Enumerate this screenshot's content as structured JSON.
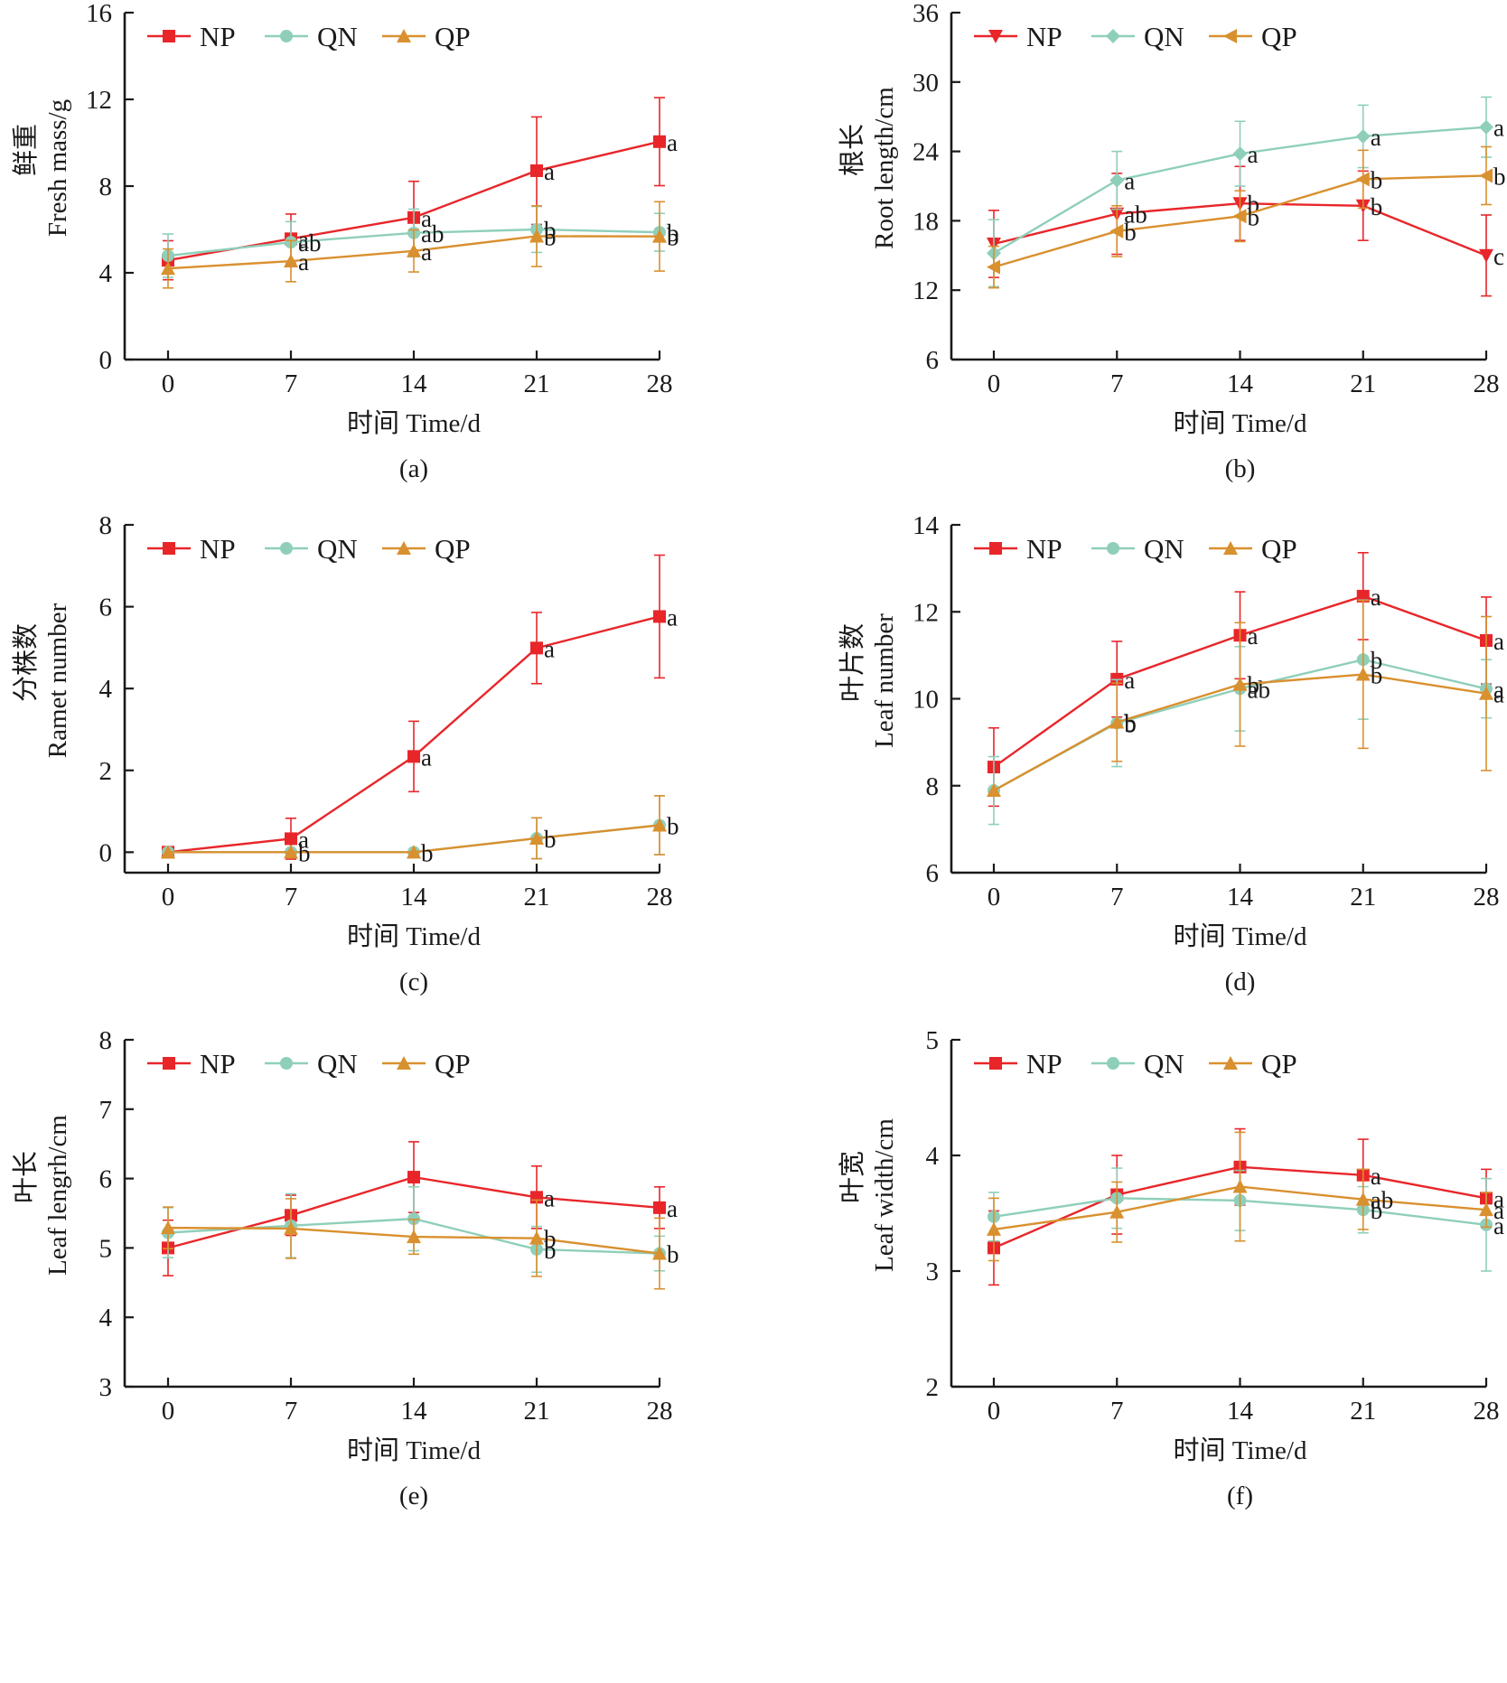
{
  "figure": {
    "xlabel_cn": "时间",
    "xlabel_en": "Time/d"
  },
  "colors": {
    "NP": "#E8262A",
    "QN": "#8FCFBA",
    "QP": "#D9902F"
  },
  "chart_data": [
    {
      "id": "a",
      "type": "line",
      "caption": "(a)",
      "ylabel_cn": "鲜重",
      "ylabel_en": "Fresh mass/g",
      "xlabel": "时间 Time/d",
      "x": [
        0,
        7,
        14,
        21,
        28
      ],
      "xticks": [
        "0",
        "7",
        "14",
        "21",
        "28"
      ],
      "ylim": [
        0,
        16
      ],
      "yticks": [
        0,
        4,
        8,
        12,
        16
      ],
      "legend": [
        "NP",
        "QN",
        "QP"
      ],
      "legend_position": "top-left",
      "markers": {
        "NP": "square",
        "QN": "circle",
        "QP": "triangle-up"
      },
      "series": [
        {
          "name": "NP",
          "values": [
            4.58,
            5.57,
            6.55,
            8.71,
            10.05
          ],
          "error": [
            0.9,
            1.14,
            1.67,
            2.48,
            2.03
          ],
          "sig": [
            "",
            "a",
            "a",
            "a",
            "a"
          ]
        },
        {
          "name": "QN",
          "values": [
            4.79,
            5.41,
            5.84,
            6.0,
            5.87
          ],
          "error": [
            1.0,
            0.95,
            1.1,
            1.06,
            0.87
          ],
          "sig": [
            "",
            "ab",
            "ab",
            "b",
            "b"
          ]
        },
        {
          "name": "QP",
          "values": [
            4.2,
            4.54,
            5.01,
            5.69,
            5.68
          ],
          "error": [
            0.9,
            0.95,
            0.97,
            1.4,
            1.6
          ],
          "sig": [
            "",
            "a",
            "a",
            "b",
            "b"
          ]
        }
      ]
    },
    {
      "id": "b",
      "type": "line",
      "caption": "(b)",
      "ylabel_cn": "根长",
      "ylabel_en": "Root length/cm",
      "xlabel": "时间 Time/d",
      "x": [
        0,
        7,
        14,
        21,
        28
      ],
      "xticks": [
        "0",
        "7",
        "14",
        "21",
        "28"
      ],
      "ylim": [
        6,
        36
      ],
      "yticks": [
        6,
        12,
        18,
        24,
        30,
        36
      ],
      "legend": [
        "NP",
        "QN",
        "QP"
      ],
      "legend_position": "top-left",
      "markers": {
        "NP": "triangle-down",
        "QN": "diamond",
        "QP": "triangle-left"
      },
      "series": [
        {
          "name": "NP",
          "values": [
            16.0,
            18.6,
            19.5,
            19.3,
            15.0
          ],
          "error": [
            2.9,
            3.5,
            3.2,
            3.0,
            3.5
          ],
          "sig": [
            "",
            "ab",
            "b",
            "b",
            "c"
          ]
        },
        {
          "name": "QN",
          "values": [
            15.2,
            21.5,
            23.8,
            25.3,
            26.1
          ],
          "error": [
            2.9,
            2.5,
            2.8,
            2.7,
            2.6
          ],
          "sig": [
            "",
            "a",
            "a",
            "a",
            "a"
          ]
        },
        {
          "name": "QP",
          "values": [
            14.0,
            17.1,
            18.4,
            21.6,
            21.9
          ],
          "error": [
            1.8,
            2.2,
            2.2,
            2.5,
            2.5
          ],
          "sig": [
            "",
            "b",
            "b",
            "b",
            "b"
          ]
        }
      ]
    },
    {
      "id": "c",
      "type": "line",
      "caption": "(c)",
      "ylabel_cn": "分株数",
      "ylabel_en": "Ramet number",
      "xlabel": "时间 Time/d",
      "x": [
        0,
        7,
        14,
        21,
        28
      ],
      "xticks": [
        "0",
        "7",
        "14",
        "21",
        "28"
      ],
      "ylim": [
        -0.5,
        8
      ],
      "yticks": [
        0,
        2,
        4,
        6,
        8
      ],
      "legend": [
        "NP",
        "QN",
        "QP"
      ],
      "legend_position": "top-left",
      "markers": {
        "NP": "square",
        "QN": "circle",
        "QP": "triangle-up"
      },
      "series": [
        {
          "name": "NP",
          "values": [
            0,
            0.33,
            2.34,
            4.99,
            5.76
          ],
          "error": [
            0,
            0.5,
            0.86,
            0.87,
            1.5
          ],
          "sig": [
            "",
            "a",
            "a",
            "a",
            "a"
          ]
        },
        {
          "name": "QN",
          "values": [
            0,
            0,
            0,
            0.34,
            0.66
          ],
          "error": [
            0,
            0,
            0,
            0.5,
            0.72
          ],
          "sig": [
            "",
            "",
            "",
            "",
            ""
          ]
        },
        {
          "name": "QP",
          "values": [
            0,
            0,
            0,
            0.34,
            0.66
          ],
          "error": [
            0,
            0,
            0,
            0.5,
            0.72
          ],
          "sig": [
            "",
            "b",
            "b",
            "b",
            "b"
          ]
        }
      ]
    },
    {
      "id": "d",
      "type": "line",
      "caption": "(d)",
      "ylabel_cn": "叶片数",
      "ylabel_en": "Leaf number",
      "xlabel": "时间 Time/d",
      "x": [
        0,
        7,
        14,
        21,
        28
      ],
      "xticks": [
        "0",
        "7",
        "14",
        "21",
        "28"
      ],
      "ylim": [
        6,
        14
      ],
      "yticks": [
        6,
        8,
        10,
        12,
        14
      ],
      "legend": [
        "NP",
        "QN",
        "QP"
      ],
      "legend_position": "top-left",
      "markers": {
        "NP": "square",
        "QN": "circle",
        "QP": "triangle-up"
      },
      "series": [
        {
          "name": "NP",
          "values": [
            8.43,
            10.45,
            11.46,
            12.36,
            11.34
          ],
          "error": [
            0.9,
            0.87,
            1.0,
            1.0,
            1.0
          ],
          "sig": [
            "",
            "a",
            "a",
            "a",
            "a"
          ]
        },
        {
          "name": "QN",
          "values": [
            7.89,
            9.44,
            10.23,
            10.9,
            10.23
          ],
          "error": [
            0.78,
            1.0,
            0.97,
            1.37,
            0.67
          ],
          "sig": [
            "",
            "b",
            "ab",
            "b",
            "a"
          ]
        },
        {
          "name": "QP",
          "values": [
            7.89,
            9.46,
            10.33,
            10.56,
            10.12
          ],
          "error": [
            0,
            0.9,
            1.42,
            1.7,
            1.77
          ],
          "sig": [
            "",
            "b",
            "b",
            "b",
            "a"
          ]
        }
      ]
    },
    {
      "id": "e",
      "type": "line",
      "caption": "(e)",
      "ylabel_cn": "叶长",
      "ylabel_en": "Leaf lengrh/cm",
      "xlabel": "时间 Time/d",
      "x": [
        0,
        7,
        14,
        21,
        28
      ],
      "xticks": [
        "0",
        "7",
        "14",
        "21",
        "28"
      ],
      "ylim": [
        3,
        8
      ],
      "yticks": [
        3,
        4,
        5,
        6,
        7,
        8
      ],
      "legend": [
        "NP",
        "QN",
        "QP"
      ],
      "legend_position": "top-left",
      "markers": {
        "NP": "square",
        "QN": "circle",
        "QP": "triangle-up"
      },
      "series": [
        {
          "name": "NP",
          "values": [
            5.0,
            5.47,
            6.02,
            5.73,
            5.58
          ],
          "error": [
            0.4,
            0.29,
            0.51,
            0.45,
            0.3
          ],
          "sig": [
            "",
            "",
            "",
            "a",
            "a"
          ]
        },
        {
          "name": "QN",
          "values": [
            5.22,
            5.32,
            5.42,
            4.98,
            4.92
          ],
          "error": [
            0.36,
            0.46,
            0.46,
            0.33,
            0.25
          ],
          "sig": [
            "",
            "",
            "",
            "b",
            ""
          ]
        },
        {
          "name": "QP",
          "values": [
            5.29,
            5.28,
            5.16,
            5.14,
            4.92
          ],
          "error": [
            0.3,
            0.43,
            0.25,
            0.55,
            0.51
          ],
          "sig": [
            "",
            "",
            "",
            "b",
            "b"
          ]
        }
      ]
    },
    {
      "id": "f",
      "type": "line",
      "caption": "(f)",
      "ylabel_cn": "叶宽",
      "ylabel_en": "Leaf width/cm",
      "xlabel": "时间 Time/d",
      "x": [
        0,
        7,
        14,
        21,
        28
      ],
      "xticks": [
        "0",
        "7",
        "14",
        "21",
        "28"
      ],
      "ylim": [
        2,
        5
      ],
      "yticks": [
        2,
        3,
        4,
        5
      ],
      "legend": [
        "NP",
        "QN",
        "QP"
      ],
      "legend_position": "top-left",
      "markers": {
        "NP": "square",
        "QN": "circle",
        "QP": "triangle-up"
      },
      "series": [
        {
          "name": "NP",
          "values": [
            3.2,
            3.66,
            3.9,
            3.83,
            3.63
          ],
          "error": [
            0.32,
            0.34,
            0.33,
            0.31,
            0.25
          ],
          "sig": [
            "",
            "",
            "",
            "a",
            "a"
          ]
        },
        {
          "name": "QN",
          "values": [
            3.47,
            3.63,
            3.61,
            3.53,
            3.4
          ],
          "error": [
            0.21,
            0.26,
            0.26,
            0.2,
            0.4
          ],
          "sig": [
            "",
            "",
            "",
            "b",
            "a"
          ]
        },
        {
          "name": "QP",
          "values": [
            3.36,
            3.51,
            3.73,
            3.62,
            3.53
          ],
          "error": [
            0.27,
            0.26,
            0.47,
            0.26,
            0.15
          ],
          "sig": [
            "",
            "",
            "",
            "ab",
            "a"
          ]
        }
      ]
    }
  ]
}
